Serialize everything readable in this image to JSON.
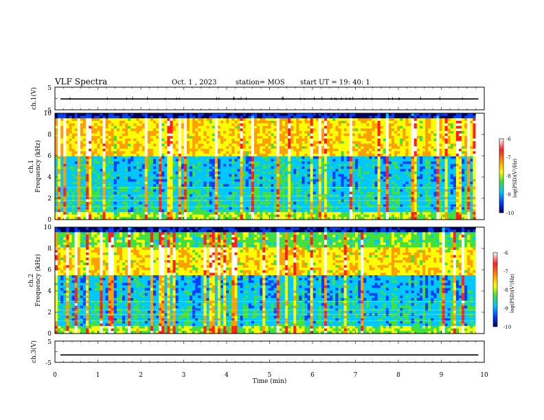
{
  "header": {
    "title": "VLF Spectra",
    "date": "Oct. 1 , 2023",
    "station": "station= MOS",
    "start_ut": "start UT = 19: 40: 1"
  },
  "colorbar_labels": {
    "values": [
      "-6",
      "-7",
      "-8",
      "-9",
      "-10"
    ],
    "title": "log(PSD)(V²/Hz)"
  },
  "colors": {
    "gradient": [
      "#ffffff",
      "#ff2020",
      "#ffa000",
      "#ffff00",
      "#40e040",
      "#00c8ff",
      "#0040ff",
      "#000060"
    ]
  },
  "chart_data": [
    {
      "type": "line",
      "name": "ch1-waveform",
      "ylabel": "ch.1(V)",
      "ylim": [
        -5,
        5
      ],
      "yticks": [
        "5",
        "-5"
      ],
      "x": [
        0,
        10
      ],
      "values": [
        -0.2,
        -0.2
      ]
    },
    {
      "type": "heatmap",
      "name": "ch1-spectrogram",
      "ylabel_top": "ch.1",
      "ylabel": "Frequency (kHz)",
      "ylim": [
        0,
        10
      ],
      "yticks": [
        "0",
        "2",
        "4",
        "6",
        "8",
        "10"
      ],
      "xlim": [
        0,
        9.8
      ],
      "dominant_band_khz": [
        6,
        9.5
      ],
      "colorbar": {
        "min": -10,
        "max": -6,
        "label": "log(PSD)(V²/Hz)"
      }
    },
    {
      "type": "heatmap",
      "name": "ch2-spectrogram",
      "ylabel_top": "ch.2",
      "ylabel": "Frequency (kHz)",
      "ylim": [
        0,
        10
      ],
      "yticks": [
        "0",
        "2",
        "4",
        "6",
        "8",
        "10"
      ],
      "xlim": [
        0,
        9.8
      ],
      "dominant_band_khz": [
        5.5,
        8
      ],
      "colorbar": {
        "min": -10,
        "max": -6,
        "label": "log(PSD)(V²/Hz)"
      }
    },
    {
      "type": "line",
      "name": "ch3-waveform",
      "ylabel": "ch.3(V)",
      "ylim": [
        -5,
        5
      ],
      "yticks": [
        "5",
        "-5"
      ],
      "x": [
        0,
        10
      ],
      "values": [
        -1.5,
        -1.5
      ]
    }
  ],
  "xaxis": {
    "label": "Time (min)",
    "ticks": [
      "0",
      "1",
      "2",
      "3",
      "4",
      "5",
      "6",
      "7",
      "8",
      "9",
      "10"
    ],
    "xlim": [
      0,
      10
    ]
  }
}
